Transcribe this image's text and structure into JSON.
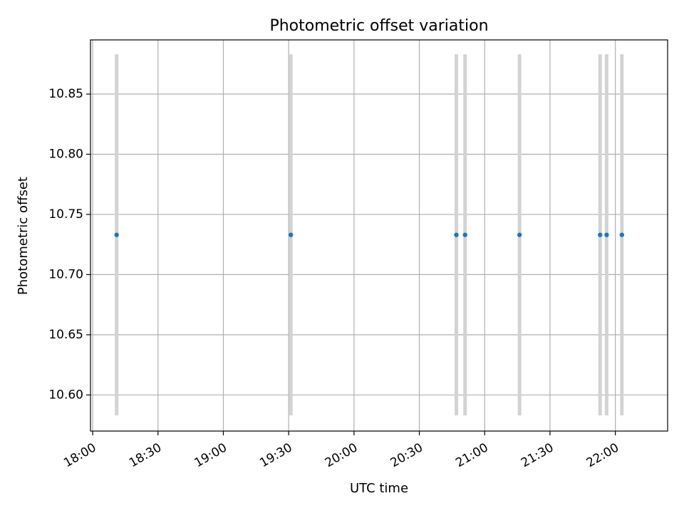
{
  "chart_data": {
    "type": "scatter",
    "title": "Photometric offset variation",
    "xlabel": "UTC time",
    "ylabel": "Photometric offset",
    "xlim": [
      "17:59",
      "22:24"
    ],
    "ylim": [
      10.57,
      10.895
    ],
    "x_ticks": [
      "18:00",
      "18:30",
      "19:00",
      "19:30",
      "20:00",
      "20:30",
      "21:00",
      "21:30",
      "22:00"
    ],
    "y_ticks": [
      "10.60",
      "10.65",
      "10.70",
      "10.75",
      "10.80",
      "10.85"
    ],
    "grid": true,
    "points": [
      {
        "x": "18:11",
        "y": 10.733,
        "err": 0.15
      },
      {
        "x": "19:31",
        "y": 10.733,
        "err": 0.15
      },
      {
        "x": "20:47",
        "y": 10.733,
        "err": 0.15
      },
      {
        "x": "20:51",
        "y": 10.733,
        "err": 0.15
      },
      {
        "x": "21:16",
        "y": 10.733,
        "err": 0.15
      },
      {
        "x": "21:53",
        "y": 10.733,
        "err": 0.15
      },
      {
        "x": "21:56",
        "y": 10.733,
        "err": 0.15
      },
      {
        "x": "22:03",
        "y": 10.733,
        "err": 0.15
      }
    ],
    "colors": {
      "point": "#1f77b4",
      "errorbar": "#d3d3d3",
      "grid": "#b0b0b0"
    }
  }
}
